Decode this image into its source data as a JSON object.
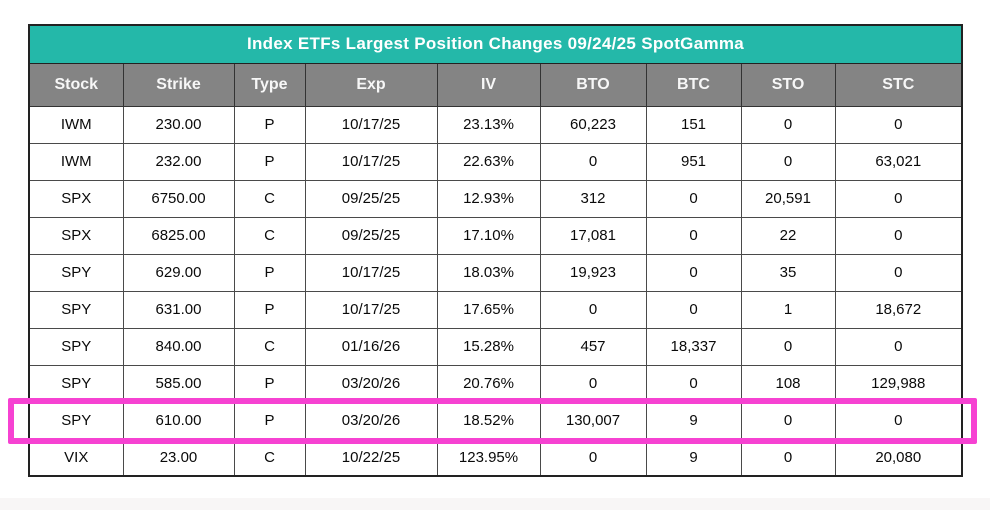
{
  "colors": {
    "title_bar": "#24b8a9",
    "header_row": "#848484",
    "highlight_border": "#f642d2",
    "header_text": "#ffffff",
    "cell_text": "#0a0a0a"
  },
  "chart_data": {
    "type": "table",
    "title": "Index ETFs Largest Position Changes 09/24/25 SpotGamma",
    "columns": [
      "Stock",
      "Strike",
      "Type",
      "Exp",
      "IV",
      "BTO",
      "BTC",
      "STO",
      "STC"
    ],
    "rows": [
      [
        "IWM",
        "230.00",
        "P",
        "10/17/25",
        "23.13%",
        "60,223",
        "151",
        "0",
        "0"
      ],
      [
        "IWM",
        "232.00",
        "P",
        "10/17/25",
        "22.63%",
        "0",
        "951",
        "0",
        "63,021"
      ],
      [
        "SPX",
        "6750.00",
        "C",
        "09/25/25",
        "12.93%",
        "312",
        "0",
        "20,591",
        "0"
      ],
      [
        "SPX",
        "6825.00",
        "C",
        "09/25/25",
        "17.10%",
        "17,081",
        "0",
        "22",
        "0"
      ],
      [
        "SPY",
        "629.00",
        "P",
        "10/17/25",
        "18.03%",
        "19,923",
        "0",
        "35",
        "0"
      ],
      [
        "SPY",
        "631.00",
        "P",
        "10/17/25",
        "17.65%",
        "0",
        "0",
        "1",
        "18,672"
      ],
      [
        "SPY",
        "840.00",
        "C",
        "01/16/26",
        "15.28%",
        "457",
        "18,337",
        "0",
        "0"
      ],
      [
        "SPY",
        "585.00",
        "P",
        "03/20/26",
        "20.76%",
        "0",
        "0",
        "108",
        "129,988"
      ],
      [
        "SPY",
        "610.00",
        "P",
        "03/20/26",
        "18.52%",
        "130,007",
        "9",
        "0",
        "0"
      ],
      [
        "VIX",
        "23.00",
        "C",
        "10/22/25",
        "123.95%",
        "0",
        "9",
        "0",
        "20,080"
      ]
    ],
    "highlighted_row_index": 8,
    "layout_hints": {
      "grid": "on",
      "title_position": "top-merged-cell",
      "highlight_style": "magenta-outline-box"
    }
  }
}
